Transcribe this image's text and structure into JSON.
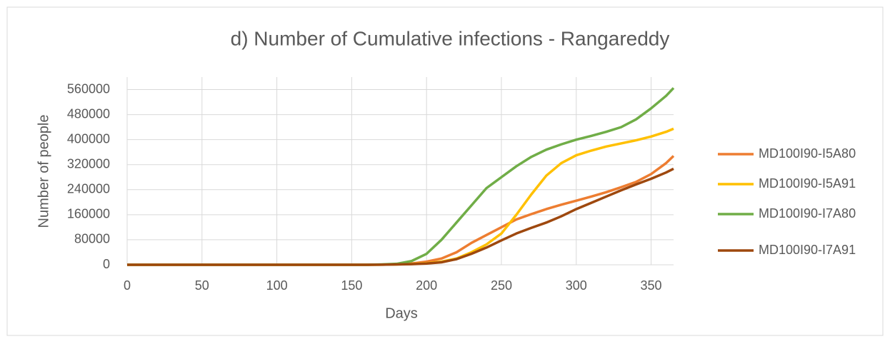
{
  "chart_data": {
    "type": "line",
    "title": "d) Number of Cumulative infections - Rangareddy",
    "x_label": "Days",
    "y_label": "Number of people",
    "x": [
      0,
      10,
      20,
      30,
      40,
      50,
      60,
      70,
      80,
      90,
      100,
      110,
      120,
      130,
      140,
      150,
      160,
      170,
      180,
      190,
      200,
      210,
      220,
      230,
      240,
      250,
      260,
      270,
      280,
      290,
      300,
      310,
      320,
      330,
      340,
      350,
      360,
      365
    ],
    "series": [
      {
        "name": "MD100I90-I5A80",
        "color": "#ed7d31",
        "values": [
          0,
          0,
          0,
          0,
          0,
          0,
          0,
          0,
          0,
          0,
          0,
          0,
          0,
          0,
          0,
          0,
          0,
          500,
          1500,
          4000,
          10000,
          20000,
          40000,
          70000,
          95000,
          120000,
          145000,
          162000,
          178000,
          192000,
          205000,
          218000,
          232000,
          248000,
          265000,
          290000,
          325000,
          348000
        ]
      },
      {
        "name": "MD100I90-I5A91",
        "color": "#ffc000",
        "values": [
          0,
          0,
          0,
          0,
          0,
          0,
          0,
          0,
          0,
          0,
          0,
          0,
          0,
          0,
          0,
          0,
          0,
          300,
          1000,
          2500,
          5000,
          10000,
          20000,
          40000,
          65000,
          100000,
          160000,
          225000,
          285000,
          325000,
          350000,
          365000,
          378000,
          388000,
          398000,
          410000,
          425000,
          435000
        ]
      },
      {
        "name": "MD100I90-I7A80",
        "color": "#70ad47",
        "values": [
          0,
          0,
          0,
          0,
          0,
          0,
          0,
          0,
          0,
          0,
          0,
          0,
          0,
          0,
          0,
          0,
          0,
          1000,
          3000,
          12000,
          35000,
          80000,
          135000,
          190000,
          245000,
          280000,
          315000,
          345000,
          368000,
          385000,
          400000,
          412000,
          425000,
          440000,
          465000,
          500000,
          540000,
          565000
        ]
      },
      {
        "name": "MD100I90-I7A91",
        "color": "#9e480e",
        "values": [
          0,
          0,
          0,
          0,
          0,
          0,
          0,
          0,
          0,
          0,
          0,
          0,
          0,
          0,
          0,
          0,
          0,
          300,
          1000,
          2000,
          4000,
          8000,
          18000,
          35000,
          55000,
          78000,
          100000,
          118000,
          135000,
          155000,
          178000,
          198000,
          218000,
          238000,
          257000,
          275000,
          295000,
          307000
        ]
      }
    ],
    "xlim": [
      0,
      365
    ],
    "xticks": [
      0,
      50,
      100,
      150,
      200,
      250,
      300,
      350
    ],
    "ylim": [
      0,
      600000
    ],
    "yticks": [
      0,
      80000,
      160000,
      240000,
      320000,
      400000,
      480000,
      560000
    ],
    "grid": true,
    "legend": "right"
  }
}
